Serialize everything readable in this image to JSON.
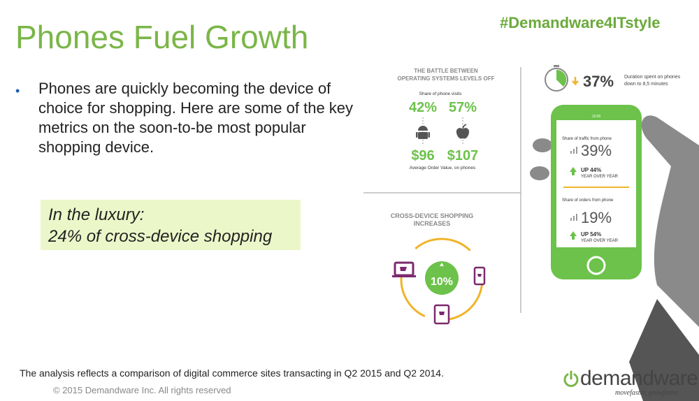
{
  "slide": {
    "title": "Phones Fuel Growth",
    "hashtag": "#Demandware4ITstyle",
    "bullet": "Phones are quickly becoming the device of choice for shopping. Here are some of the key metrics on the soon-to-be most popular shopping device.",
    "luxury_line1": "In the luxury:",
    "luxury_line2": "24% of cross-device shopping",
    "footnote": "The analysis reflects a comparison of digital commerce sites transacting in Q2 2015 and Q2 2014.",
    "copyright": "© 2015 Demandware Inc. All rights reserved"
  },
  "logo": {
    "name": "demandware",
    "tagline": "movefaster, growfaster"
  },
  "infographic": {
    "battle_title_1": "THE BATTLE BETWEEN",
    "battle_title_2": "OPERATING SYSTEMS LEVELS OFF",
    "share_label": "Share of phone visits",
    "android_share": "42%",
    "ios_share": "57%",
    "android_aov": "$96",
    "ios_aov": "$107",
    "aov_label": "Average Order Value, on phones",
    "duration_pct": "37%",
    "duration_text_1": "Duration spent on phones",
    "duration_text_2": "down to 8,5 minutes",
    "phone_time": "12:00",
    "traffic_label": "Share of traffic from phone",
    "traffic_pct": "39%",
    "traffic_up": "UP 44%",
    "traffic_yoy": "YEAR OVER YEAR",
    "orders_label": "Share of orders from phone",
    "orders_pct": "19%",
    "orders_up": "UP 54%",
    "orders_yoy": "YEAR OVER YEAR",
    "cross_title_1": "CROSS-DEVICE SHOPPING",
    "cross_title_2": "INCREASES",
    "cross_pct": "10%"
  },
  "colors": {
    "green": "#7ab648",
    "phone_green": "#6cc24a",
    "purple": "#7b2a6e",
    "yellow": "#f0b429",
    "luxury_bg": "#ecf7c9"
  },
  "icons": [
    "android-icon",
    "apple-icon",
    "stopwatch-icon",
    "down-arrow-icon",
    "up-arrow-icon",
    "bar-chart-icon",
    "shopping-cart-icon",
    "power-icon",
    "hand-icon"
  ]
}
